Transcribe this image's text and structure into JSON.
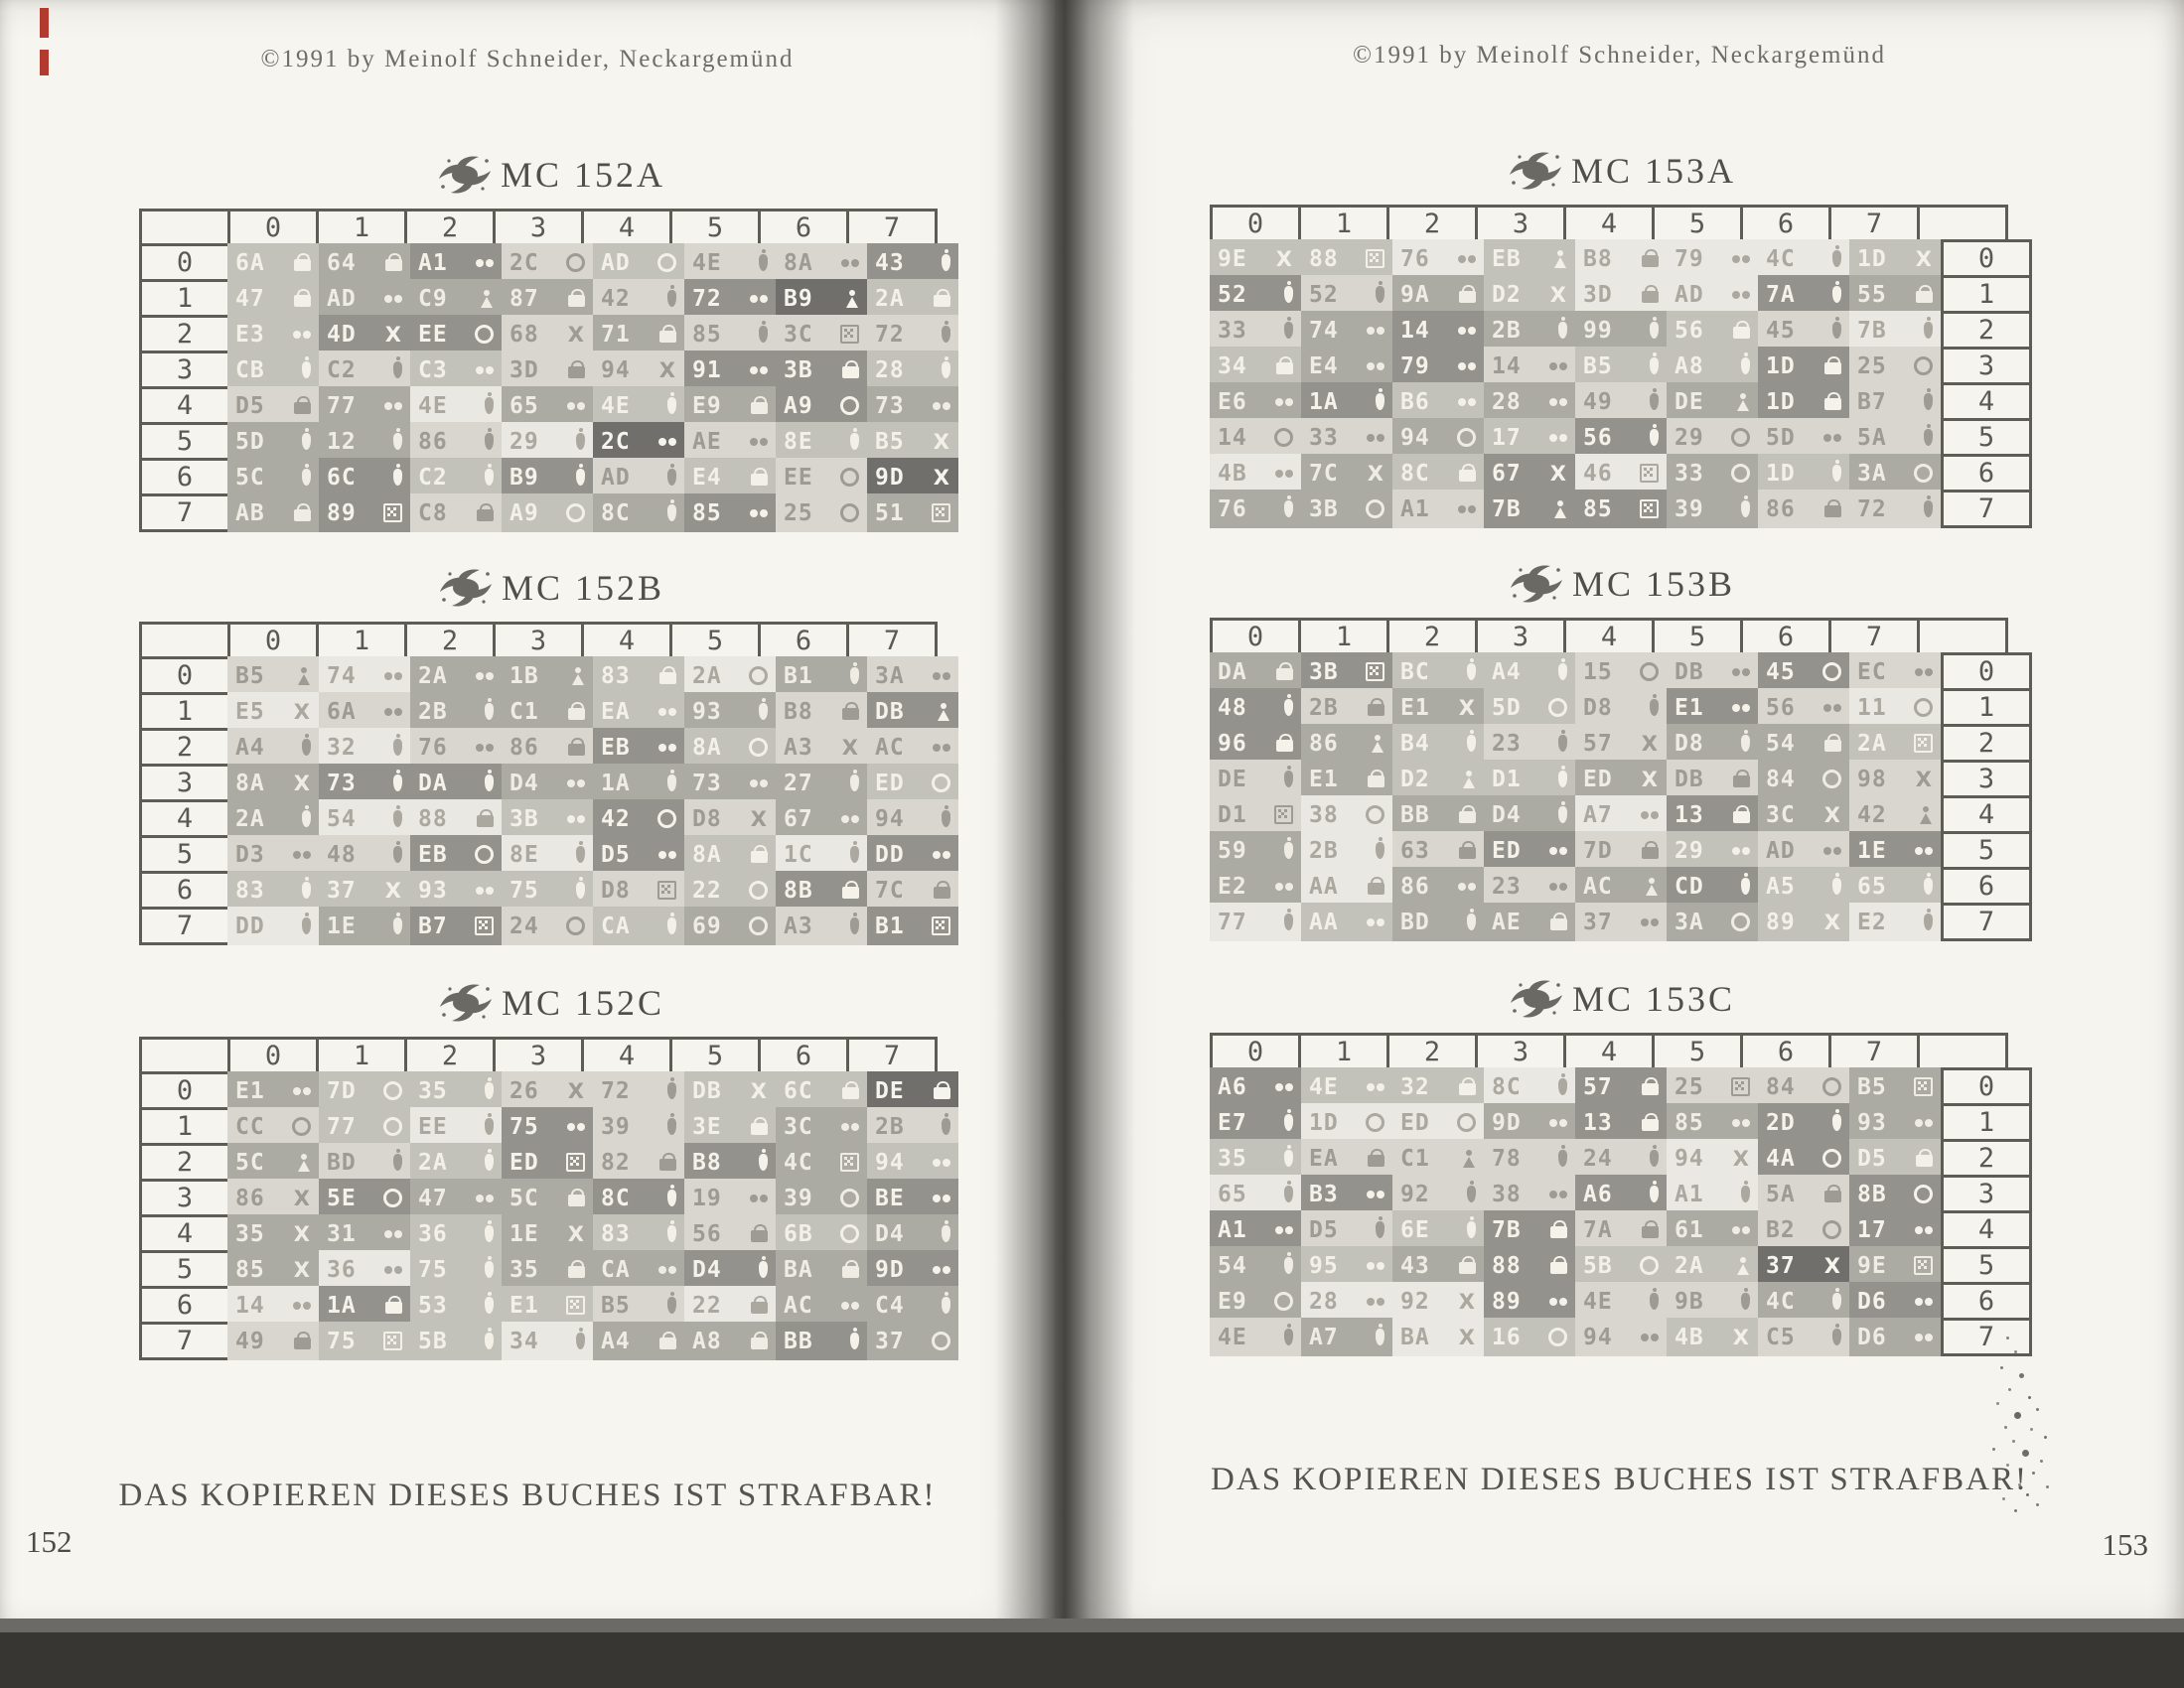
{
  "pages": [
    {
      "number": "152",
      "copyright": "©1991 by Meinolf Schneider, Neckargemünd",
      "footer": "DAS KOPIEREN DIESES BUCHES IST STRAFBAR!",
      "side": "left",
      "tables": [
        {
          "title": "MC 152A",
          "col_headers": [
            "0",
            "1",
            "2",
            "3",
            "4",
            "5",
            "6",
            "7"
          ],
          "row_headers": [
            "0",
            "1",
            "2",
            "3",
            "4",
            "5",
            "6",
            "7"
          ],
          "rows": [
            [
              "6A|lock|2",
              "64|lock|3",
              "A1|dots|4",
              "2C|ring|1",
              "AD|ring|2",
              "4E|flask|1",
              "8A|dots|1",
              "43|flask|4"
            ],
            [
              "47|lock|2",
              "AD|dots|3",
              "C9|person|3",
              "87|lock|3",
              "42|flask|1",
              "72|dots|4",
              "B9|person|5",
              "2A|lock|2"
            ],
            [
              "E3|dots|2",
              "4D|x|4",
              "EE|ring|4",
              "68|x|1",
              "71|lock|3",
              "85|flask|1",
              "3C|dice|1",
              "72|flask|1"
            ],
            [
              "CB|flask|2",
              "C2|flask|1",
              "C3|dots|2",
              "3D|lock|1",
              "94|x|1",
              "91|dots|4",
              "3B|lock|4",
              "28|flask|2"
            ],
            [
              "D5|lock|1",
              "77|dots|3",
              "4E|flask|0",
              "65|dots|3",
              "4E|flask|2",
              "E9|lock|3",
              "A9|ring|4",
              "73|dots|3"
            ],
            [
              "5D|flask|3",
              "12|flask|3",
              "86|flask|1",
              "29|flask|0",
              "2C|dots|5",
              "AE|dots|1",
              "8E|flask|2",
              "B5|x|2"
            ],
            [
              "5C|flask|3",
              "6C|flask|4",
              "C2|flask|2",
              "B9|flask|4",
              "AD|flask|1",
              "E4|lock|2",
              "EE|ring|1",
              "9D|x|5"
            ],
            [
              "AB|lock|3",
              "89|dice|4",
              "C8|lock|1",
              "A9|ring|2",
              "8C|flask|3",
              "85|dots|4",
              "25|ring|1",
              "51|dice|3"
            ]
          ]
        },
        {
          "title": "MC 152B",
          "col_headers": [
            "0",
            "1",
            "2",
            "3",
            "4",
            "5",
            "6",
            "7"
          ],
          "row_headers": [
            "0",
            "1",
            "2",
            "3",
            "4",
            "5",
            "6",
            "7"
          ],
          "rows": [
            [
              "B5|person|1",
              "74|dots|0",
              "2A|dots|3",
              "1B|person|3",
              "83|lock|2",
              "2A|ring|0",
              "B1|flask|3",
              "3A|dots|1"
            ],
            [
              "E5|x|0",
              "6A|dots|1",
              "2B|flask|3",
              "C1|lock|3",
              "EA|dots|2",
              "93|flask|3",
              "B8|lock|1",
              "DB|person|4"
            ],
            [
              "A4|flask|1",
              "32|flask|0",
              "76|dots|1",
              "86|lock|1",
              "EB|dots|4",
              "8A|ring|2",
              "A3|x|1",
              "AC|dots|1"
            ],
            [
              "8A|x|3",
              "73|flask|4",
              "DA|flask|4",
              "D4|dots|3",
              "1A|flask|3",
              "73|dots|3",
              "27|flask|3",
              "ED|ring|2"
            ],
            [
              "2A|flask|3",
              "54|flask|0",
              "88|lock|0",
              "3B|dots|2",
              "42|ring|4",
              "D8|x|1",
              "67|dots|3",
              "94|flask|1"
            ],
            [
              "D3|dots|1",
              "48|flask|1",
              "EB|ring|4",
              "8E|flask|0",
              "D5|dots|4",
              "8A|lock|2",
              "1C|flask|0",
              "DD|dots|4"
            ],
            [
              "83|flask|2",
              "37|x|2",
              "93|dots|2",
              "75|flask|2",
              "D8|dice|1",
              "22|ring|2",
              "8B|lock|4",
              "7C|lock|1"
            ],
            [
              "DD|flask|0",
              "1E|flask|3",
              "B7|dice|4",
              "24|ring|1",
              "CA|flask|2",
              "69|ring|3",
              "A3|flask|1",
              "B1|dice|4"
            ]
          ]
        },
        {
          "title": "MC 152C",
          "col_headers": [
            "0",
            "1",
            "2",
            "3",
            "4",
            "5",
            "6",
            "7"
          ],
          "row_headers": [
            "0",
            "1",
            "2",
            "3",
            "4",
            "5",
            "6",
            "7"
          ],
          "rows": [
            [
              "E1|dots|3",
              "7D|ring|2",
              "35|flask|2",
              "26|x|1",
              "72|flask|1",
              "DB|x|2",
              "6C|lock|2",
              "DE|lock|5"
            ],
            [
              "CC|ring|1",
              "77|ring|2",
              "EE|flask|0",
              "75|dots|4",
              "39|flask|1",
              "3E|lock|2",
              "3C|dots|3",
              "2B|flask|1"
            ],
            [
              "5C|person|3",
              "BD|flask|1",
              "2A|flask|2",
              "ED|dice|4",
              "82|lock|1",
              "B8|flask|4",
              "4C|dice|3",
              "94|dots|2"
            ],
            [
              "86|x|1",
              "5E|ring|4",
              "47|dots|3",
              "5C|lock|3",
              "8C|flask|4",
              "19|dots|1",
              "39|ring|3",
              "BE|dots|4"
            ],
            [
              "35|x|3",
              "31|dots|3",
              "36|flask|2",
              "1E|x|3",
              "83|flask|2",
              "56|lock|1",
              "6B|ring|2",
              "D4|flask|3"
            ],
            [
              "85|x|3",
              "36|dots|0",
              "75|flask|2",
              "35|lock|3",
              "CA|dots|3",
              "D4|flask|4",
              "BA|lock|3",
              "9D|dots|4"
            ],
            [
              "14|dots|0",
              "1A|lock|4",
              "53|flask|2",
              "E1|dice|2",
              "B5|flask|1",
              "22|lock|0",
              "AC|dots|3",
              "C4|flask|3"
            ],
            [
              "49|lock|1",
              "75|dice|2",
              "5B|flask|2",
              "34|flask|0",
              "A4|lock|3",
              "A8|lock|3",
              "BB|flask|4",
              "37|ring|3"
            ]
          ]
        }
      ]
    },
    {
      "number": "153",
      "copyright": "©1991 by Meinolf Schneider, Neckargemünd",
      "footer": "DAS KOPIEREN DIESES BUCHES IST STRAFBAR!",
      "side": "right",
      "tables": [
        {
          "title": "MC 153A",
          "col_headers": [
            "0",
            "1",
            "2",
            "3",
            "4",
            "5",
            "6",
            "7"
          ],
          "row_headers": [
            "0",
            "1",
            "2",
            "3",
            "4",
            "5",
            "6",
            "7"
          ],
          "rows": [
            [
              "9E|x|2",
              "88|dice|2",
              "76|dots|0",
              "EB|person|2",
              "B8|lock|0",
              "79|dots|0",
              "4C|flask|0",
              "1D|x|2"
            ],
            [
              "52|flask|4",
              "52|flask|1",
              "9A|lock|3",
              "D2|x|2",
              "3D|lock|0",
              "AD|dots|0",
              "7A|flask|4",
              "55|lock|3"
            ],
            [
              "33|flask|1",
              "74|dots|3",
              "14|dots|4",
              "2B|flask|3",
              "99|flask|3",
              "56|lock|2",
              "45|flask|1",
              "7B|flask|0"
            ],
            [
              "34|lock|2",
              "E4|dots|3",
              "79|dots|4",
              "14|dots|1",
              "B5|flask|2",
              "A8|flask|2",
              "1D|lock|4",
              "25|ring|1"
            ],
            [
              "E6|dots|3",
              "1A|flask|4",
              "B6|dots|2",
              "28|dots|3",
              "49|flask|1",
              "DE|person|3",
              "1D|lock|4",
              "B7|flask|1"
            ],
            [
              "14|ring|1",
              "33|dots|1",
              "94|ring|3",
              "17|dots|2",
              "56|flask|4",
              "29|ring|1",
              "5D|dots|1",
              "5A|flask|1"
            ],
            [
              "4B|dots|0",
              "7C|x|3",
              "8C|lock|2",
              "67|x|4",
              "46|dice|0",
              "33|ring|3",
              "1D|flask|2",
              "3A|ring|3"
            ],
            [
              "76|flask|3",
              "3B|ring|3",
              "A1|dots|1",
              "7B|person|4",
              "85|dice|4",
              "39|flask|3",
              "86|lock|1",
              "72|flask|1"
            ]
          ]
        },
        {
          "title": "MC 153B",
          "col_headers": [
            "0",
            "1",
            "2",
            "3",
            "4",
            "5",
            "6",
            "7"
          ],
          "row_headers": [
            "0",
            "1",
            "2",
            "3",
            "4",
            "5",
            "6",
            "7"
          ],
          "rows": [
            [
              "DA|lock|3",
              "3B|dice|4",
              "BC|flask|2",
              "A4|flask|2",
              "15|ring|1",
              "DB|dots|1",
              "45|ring|4",
              "EC|dots|1"
            ],
            [
              "48|flask|4",
              "2B|lock|1",
              "E1|x|3",
              "5D|ring|2",
              "D8|flask|1",
              "E1|dots|4",
              "56|dots|1",
              "11|ring|0"
            ],
            [
              "96|lock|4",
              "86|person|3",
              "B4|flask|2",
              "23|flask|1",
              "57|x|1",
              "D8|flask|3",
              "54|lock|3",
              "2A|dice|2"
            ],
            [
              "DE|flask|1",
              "E1|lock|3",
              "D2|person|2",
              "D1|flask|2",
              "ED|x|3",
              "DB|lock|1",
              "84|ring|3",
              "98|x|1"
            ],
            [
              "D1|dice|1",
              "38|ring|0",
              "BB|lock|3",
              "D4|flask|3",
              "A7|dots|0",
              "13|lock|4",
              "3C|x|3",
              "42|person|1"
            ],
            [
              "59|flask|3",
              "2B|flask|0",
              "63|lock|1",
              "ED|dots|4",
              "7D|lock|1",
              "29|dots|2",
              "AD|dots|1",
              "1E|dots|4"
            ],
            [
              "E2|dots|3",
              "AA|lock|0",
              "86|dots|3",
              "23|dots|1",
              "AC|person|3",
              "CD|flask|4",
              "A5|flask|2",
              "65|flask|2"
            ],
            [
              "77|flask|0",
              "AA|dots|2",
              "BD|flask|3",
              "AE|lock|3",
              "37|dots|1",
              "3A|ring|3",
              "89|x|2",
              "E2|flask|0"
            ]
          ]
        },
        {
          "title": "MC 153C",
          "col_headers": [
            "0",
            "1",
            "2",
            "3",
            "4",
            "5",
            "6",
            "7"
          ],
          "row_headers": [
            "0",
            "1",
            "2",
            "3",
            "4",
            "5",
            "6",
            "7"
          ],
          "rows": [
            [
              "A6|dots|4",
              "4E|dots|2",
              "32|lock|2",
              "8C|flask|0",
              "57|lock|4",
              "25|dice|1",
              "84|ring|1",
              "B5|dice|3"
            ],
            [
              "E7|flask|4",
              "1D|ring|0",
              "ED|ring|0",
              "9D|dots|3",
              "13|lock|4",
              "85|dots|3",
              "2D|flask|4",
              "93|dots|3"
            ],
            [
              "35|flask|2",
              "EA|lock|1",
              "C1|person|1",
              "78|flask|1",
              "24|flask|1",
              "94|x|0",
              "4A|ring|4",
              "D5|lock|2"
            ],
            [
              "65|flask|0",
              "B3|dots|4",
              "92|flask|1",
              "38|dots|1",
              "A6|flask|4",
              "A1|flask|0",
              "5A|lock|1",
              "8B|ring|4"
            ],
            [
              "A1|dots|4",
              "D5|flask|1",
              "6E|flask|2",
              "7B|lock|4",
              "7A|lock|1",
              "61|dots|3",
              "B2|ring|1",
              "17|dots|4"
            ],
            [
              "54|flask|3",
              "95|dots|2",
              "43|lock|3",
              "88|lock|4",
              "5B|ring|2",
              "2A|person|2",
              "37|x|5",
              "9E|dice|3"
            ],
            [
              "E9|ring|3",
              "28|dots|0",
              "92|x|0",
              "89|dots|4",
              "4E|flask|1",
              "9B|flask|1",
              "4C|flask|3",
              "D6|dots|4"
            ],
            [
              "4E|flask|1",
              "A7|flask|3",
              "BA|x|0",
              "16|ring|2",
              "94|dots|1",
              "4B|x|2",
              "C5|flask|1",
              "D6|dots|3"
            ]
          ]
        }
      ]
    }
  ],
  "icon_names": {
    "lock": "briefcase-icon",
    "dots": "double-dot-icon",
    "ring": "ring-icon",
    "flask": "bottle-icon",
    "x": "cross-icon",
    "person": "person-icon",
    "dice": "die-icon"
  },
  "colors": {
    "cell_shades": [
      "#eceae4",
      "#d9d7d0",
      "#c3c2bb",
      "#abaaa3",
      "#92918c",
      "#6e6d69"
    ],
    "cell_text": [
      "#aba99f",
      "#9d9b92",
      "#f4f2e9",
      "#f1efe5",
      "#f6f4eb",
      "#f8f7ef"
    ],
    "grid_border": "#5b5a52",
    "page_bg": "#f6f5f0"
  }
}
